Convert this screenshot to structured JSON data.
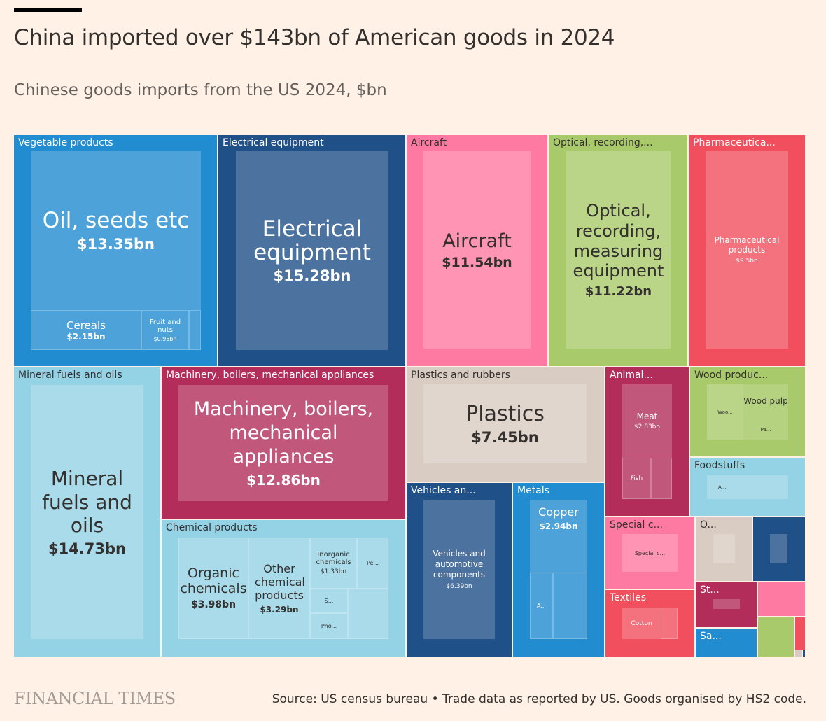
{
  "header": {
    "title": "China imported over $143bn of American goods in 2024",
    "subtitle": "Chinese goods imports from the US 2024, $bn"
  },
  "footer": {
    "brand": "FINANCIAL TIMES",
    "source": "Source: US census bureau • Trade data as reported by US. Goods organised by HS2 code."
  },
  "colors": {
    "vegetable": "#218dd0",
    "electrical": "#205088",
    "aircraft": "#ff7aa3",
    "optical": "#a9ca6b",
    "pharma": "#f14f5d",
    "mineral": "#94d2e6",
    "machinery": "#b22d5a",
    "plastics": "#d9ccc2",
    "background": "#fff1e5"
  },
  "chart_data": {
    "type": "treemap",
    "title": "China imported over $143bn of American goods in 2024",
    "subtitle": "Chinese goods imports from the US 2024, $bn",
    "unit": "$bn",
    "groups": [
      {
        "name": "Vegetable products",
        "children": [
          {
            "name": "Oil, seeds etc",
            "value": 13.35,
            "value_label": "$13.35bn"
          },
          {
            "name": "Cereals",
            "value": 2.15,
            "value_label": "$2.15bn"
          },
          {
            "name": "Fruit and nuts",
            "value": 0.95,
            "value_label": "$0.95bn"
          }
        ]
      },
      {
        "name": "Electrical equipment",
        "children": [
          {
            "name": "Electrical equipment",
            "value": 15.28,
            "value_label": "$15.28bn"
          }
        ]
      },
      {
        "name": "Aircraft",
        "children": [
          {
            "name": "Aircraft",
            "value": 11.54,
            "value_label": "$11.54bn"
          }
        ]
      },
      {
        "name": "Optical, recording,...",
        "children": [
          {
            "name": "Optical, recording, measuring equipment",
            "value": 11.22,
            "value_label": "$11.22bn"
          }
        ]
      },
      {
        "name": "Pharmaceutica...",
        "children": [
          {
            "name": "Pharmaceutical products",
            "value": 9.5,
            "value_label": "$9.5bn"
          }
        ]
      },
      {
        "name": "Mineral fuels and oils",
        "children": [
          {
            "name": "Mineral fuels and oils",
            "value": 14.73,
            "value_label": "$14.73bn"
          }
        ]
      },
      {
        "name": "Machinery, boilers, mechanical appliances",
        "children": [
          {
            "name": "Machinery, boilers, mechanical appliances",
            "value": 12.86,
            "value_label": "$12.86bn"
          }
        ]
      },
      {
        "name": "Chemical products",
        "children": [
          {
            "name": "Organic chemicals",
            "value": 3.98,
            "value_label": "$3.98bn"
          },
          {
            "name": "Other chemical products",
            "value": 3.29,
            "value_label": "$3.29bn"
          },
          {
            "name": "Inorganic chemicals",
            "value": 1.33,
            "value_label": "$1.33bn"
          },
          {
            "name": "Pe..."
          },
          {
            "name": "S..."
          },
          {
            "name": "Pho..."
          }
        ]
      },
      {
        "name": "Plastics and rubbers",
        "children": [
          {
            "name": "Plastics",
            "value": 7.45,
            "value_label": "$7.45bn"
          }
        ]
      },
      {
        "name": "Vehicles an...",
        "children": [
          {
            "name": "Vehicles and automotive components",
            "value": 6.39,
            "value_label": "$6.39bn"
          }
        ]
      },
      {
        "name": "Metals",
        "children": [
          {
            "name": "Copper",
            "value": 2.94,
            "value_label": "$2.94bn"
          },
          {
            "name": "A..."
          }
        ]
      },
      {
        "name": "Animal...",
        "children": [
          {
            "name": "Meat",
            "value": 2.83,
            "value_label": "$2.83bn"
          },
          {
            "name": "Fish"
          }
        ]
      },
      {
        "name": "Wood produc...",
        "children": [
          {
            "name": "Woo..."
          },
          {
            "name": "Wood pulp"
          },
          {
            "name": "Pa..."
          }
        ]
      },
      {
        "name": "Foodstuffs",
        "children": [
          {
            "name": "A..."
          }
        ]
      },
      {
        "name": "Special c...",
        "children": [
          {
            "name": "Special c..."
          }
        ]
      },
      {
        "name": "Textiles",
        "children": [
          {
            "name": "Cotton"
          }
        ]
      },
      {
        "name": "O..."
      },
      {
        "name": "St..."
      },
      {
        "name": "Sa..."
      }
    ]
  }
}
